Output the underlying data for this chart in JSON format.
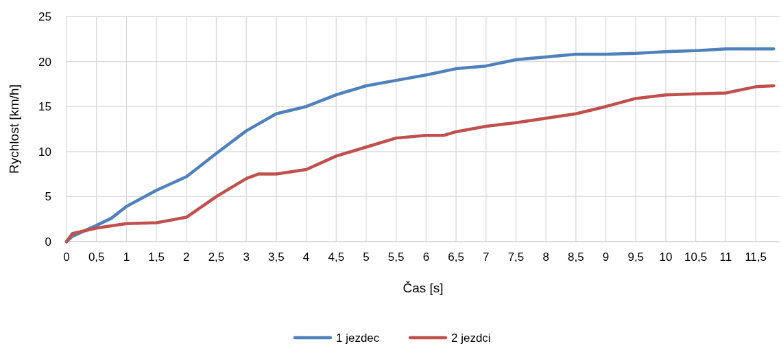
{
  "chart_data": {
    "type": "line",
    "xlabel": "Čas [s]",
    "ylabel": "Rychlost [km/h]",
    "xlim": [
      0,
      11.9
    ],
    "xticks": [
      0,
      {
        "value": 0.5,
        "label": "0,5"
      },
      1,
      {
        "value": 1.5,
        "label": "1,5"
      },
      2,
      {
        "value": 2.5,
        "label": "2,5"
      },
      3,
      {
        "value": 3.5,
        "label": "3,5"
      },
      4,
      {
        "value": 4.5,
        "label": "4,5"
      },
      5,
      {
        "value": 5.5,
        "label": "5,5"
      },
      6,
      {
        "value": 6.5,
        "label": "6,5"
      },
      7,
      {
        "value": 7.5,
        "label": "7,5"
      },
      8,
      {
        "value": 8.5,
        "label": "8,5"
      },
      9,
      {
        "value": 9.5,
        "label": "9,5"
      },
      10,
      {
        "value": 10.5,
        "label": "10,5"
      },
      11,
      {
        "value": 11.5,
        "label": "11,5"
      }
    ],
    "ylim": [
      0,
      25
    ],
    "yticks": [
      0,
      5,
      10,
      15,
      20,
      25
    ],
    "grid": true,
    "legend": "bottom",
    "marker": "none",
    "line_style": "solid",
    "series": [
      {
        "name": "1 jezdec",
        "color": "#4f81bd",
        "x": [
          0,
          0.1,
          0.5,
          0.75,
          1,
          1.5,
          2,
          2.5,
          3,
          3.5,
          4,
          4.5,
          5,
          5.5,
          6,
          6.5,
          7,
          7.5,
          8,
          8.5,
          9,
          9.5,
          10,
          10.5,
          11,
          11.5,
          11.8
        ],
        "values": [
          0,
          0.6,
          1.8,
          2.6,
          3.9,
          5.7,
          7.2,
          9.8,
          12.3,
          14.2,
          15.0,
          16.3,
          17.3,
          17.9,
          18.5,
          19.2,
          19.5,
          20.2,
          20.5,
          20.8,
          20.8,
          20.9,
          21.1,
          21.2,
          21.4,
          21.4,
          21.4
        ]
      },
      {
        "name": "2 jezdci",
        "color": "#c0504d",
        "x": [
          0,
          0.1,
          0.5,
          1,
          1.5,
          2,
          2.5,
          3,
          3.2,
          3.5,
          4,
          4.5,
          5,
          5.5,
          6,
          6.3,
          6.5,
          7,
          7.5,
          8,
          8.5,
          9,
          9.5,
          10,
          10.5,
          11,
          11.5,
          11.8
        ],
        "values": [
          0,
          0.9,
          1.5,
          2.0,
          2.1,
          2.7,
          5.0,
          7.0,
          7.5,
          7.5,
          8.0,
          9.5,
          10.5,
          11.5,
          11.8,
          11.8,
          12.2,
          12.8,
          13.2,
          13.7,
          14.2,
          15.0,
          15.9,
          16.3,
          16.4,
          16.5,
          17.2,
          17.3
        ]
      }
    ]
  }
}
